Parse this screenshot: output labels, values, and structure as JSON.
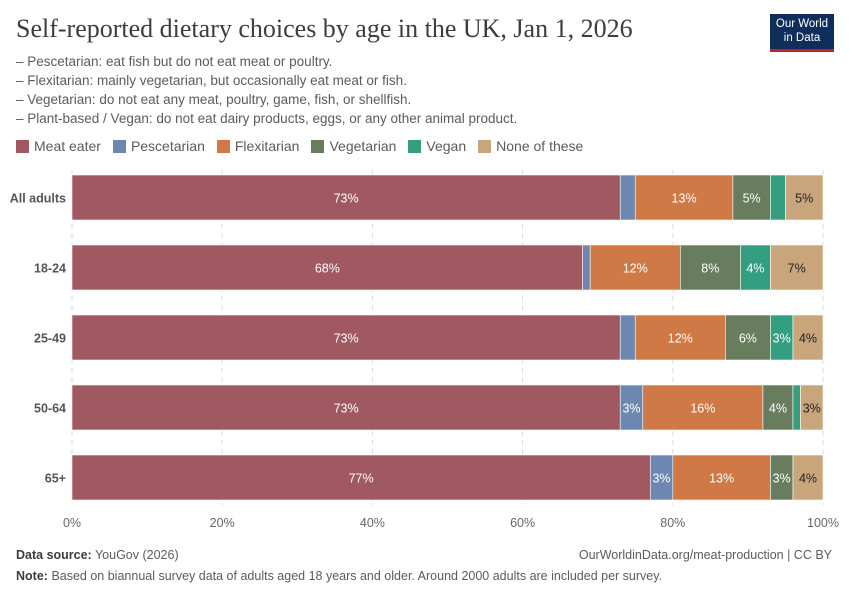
{
  "header": {
    "title": "Self-reported dietary choices by age in the UK, Jan 1, 2026",
    "notes": [
      "– Pescetarian: eat fish but do not eat meat or poultry.",
      "– Flexitarian: mainly vegetarian, but occasionally eat meat or fish.",
      "– Vegetarian: do not eat any meat, poultry, game, fish, or shellfish.",
      "– Plant-based / Vegan: do not eat dairy products, eggs, or any other animal product."
    ],
    "logo": "Our World in Data"
  },
  "chart_data": {
    "type": "bar",
    "orientation": "horizontal",
    "stacked": true,
    "categories": [
      "All adults",
      "18-24",
      "25-49",
      "50-64",
      "65+"
    ],
    "series": [
      {
        "name": "Meat eater",
        "color": "#a05861",
        "values": [
          73,
          68,
          73,
          73,
          77
        ]
      },
      {
        "name": "Pescetarian",
        "color": "#6d87b0",
        "values": [
          2,
          1,
          2,
          3,
          3
        ]
      },
      {
        "name": "Flexitarian",
        "color": "#cf7a46",
        "values": [
          13,
          12,
          12,
          16,
          13
        ]
      },
      {
        "name": "Vegetarian",
        "color": "#687c5e",
        "values": [
          5,
          8,
          6,
          4,
          3
        ]
      },
      {
        "name": "Vegan",
        "color": "#339e80",
        "values": [
          2,
          4,
          3,
          1,
          0
        ]
      },
      {
        "name": "None of these",
        "color": "#c9a57b",
        "values": [
          5,
          7,
          4,
          3,
          4
        ]
      }
    ],
    "xlim": [
      0,
      100
    ],
    "xticks": [
      "0%",
      "20%",
      "40%",
      "60%",
      "80%",
      "100%"
    ],
    "grid": true,
    "legend": "top-left",
    "unit": "%"
  },
  "footer": {
    "source_label": "Data source:",
    "source": "YouGov (2026)",
    "url": "OurWorldinData.org/meat-production | CC BY",
    "note_label": "Note:",
    "note": "Based on biannual survey data of adults aged 18 years and older. Around 2000 adults are included per survey."
  }
}
